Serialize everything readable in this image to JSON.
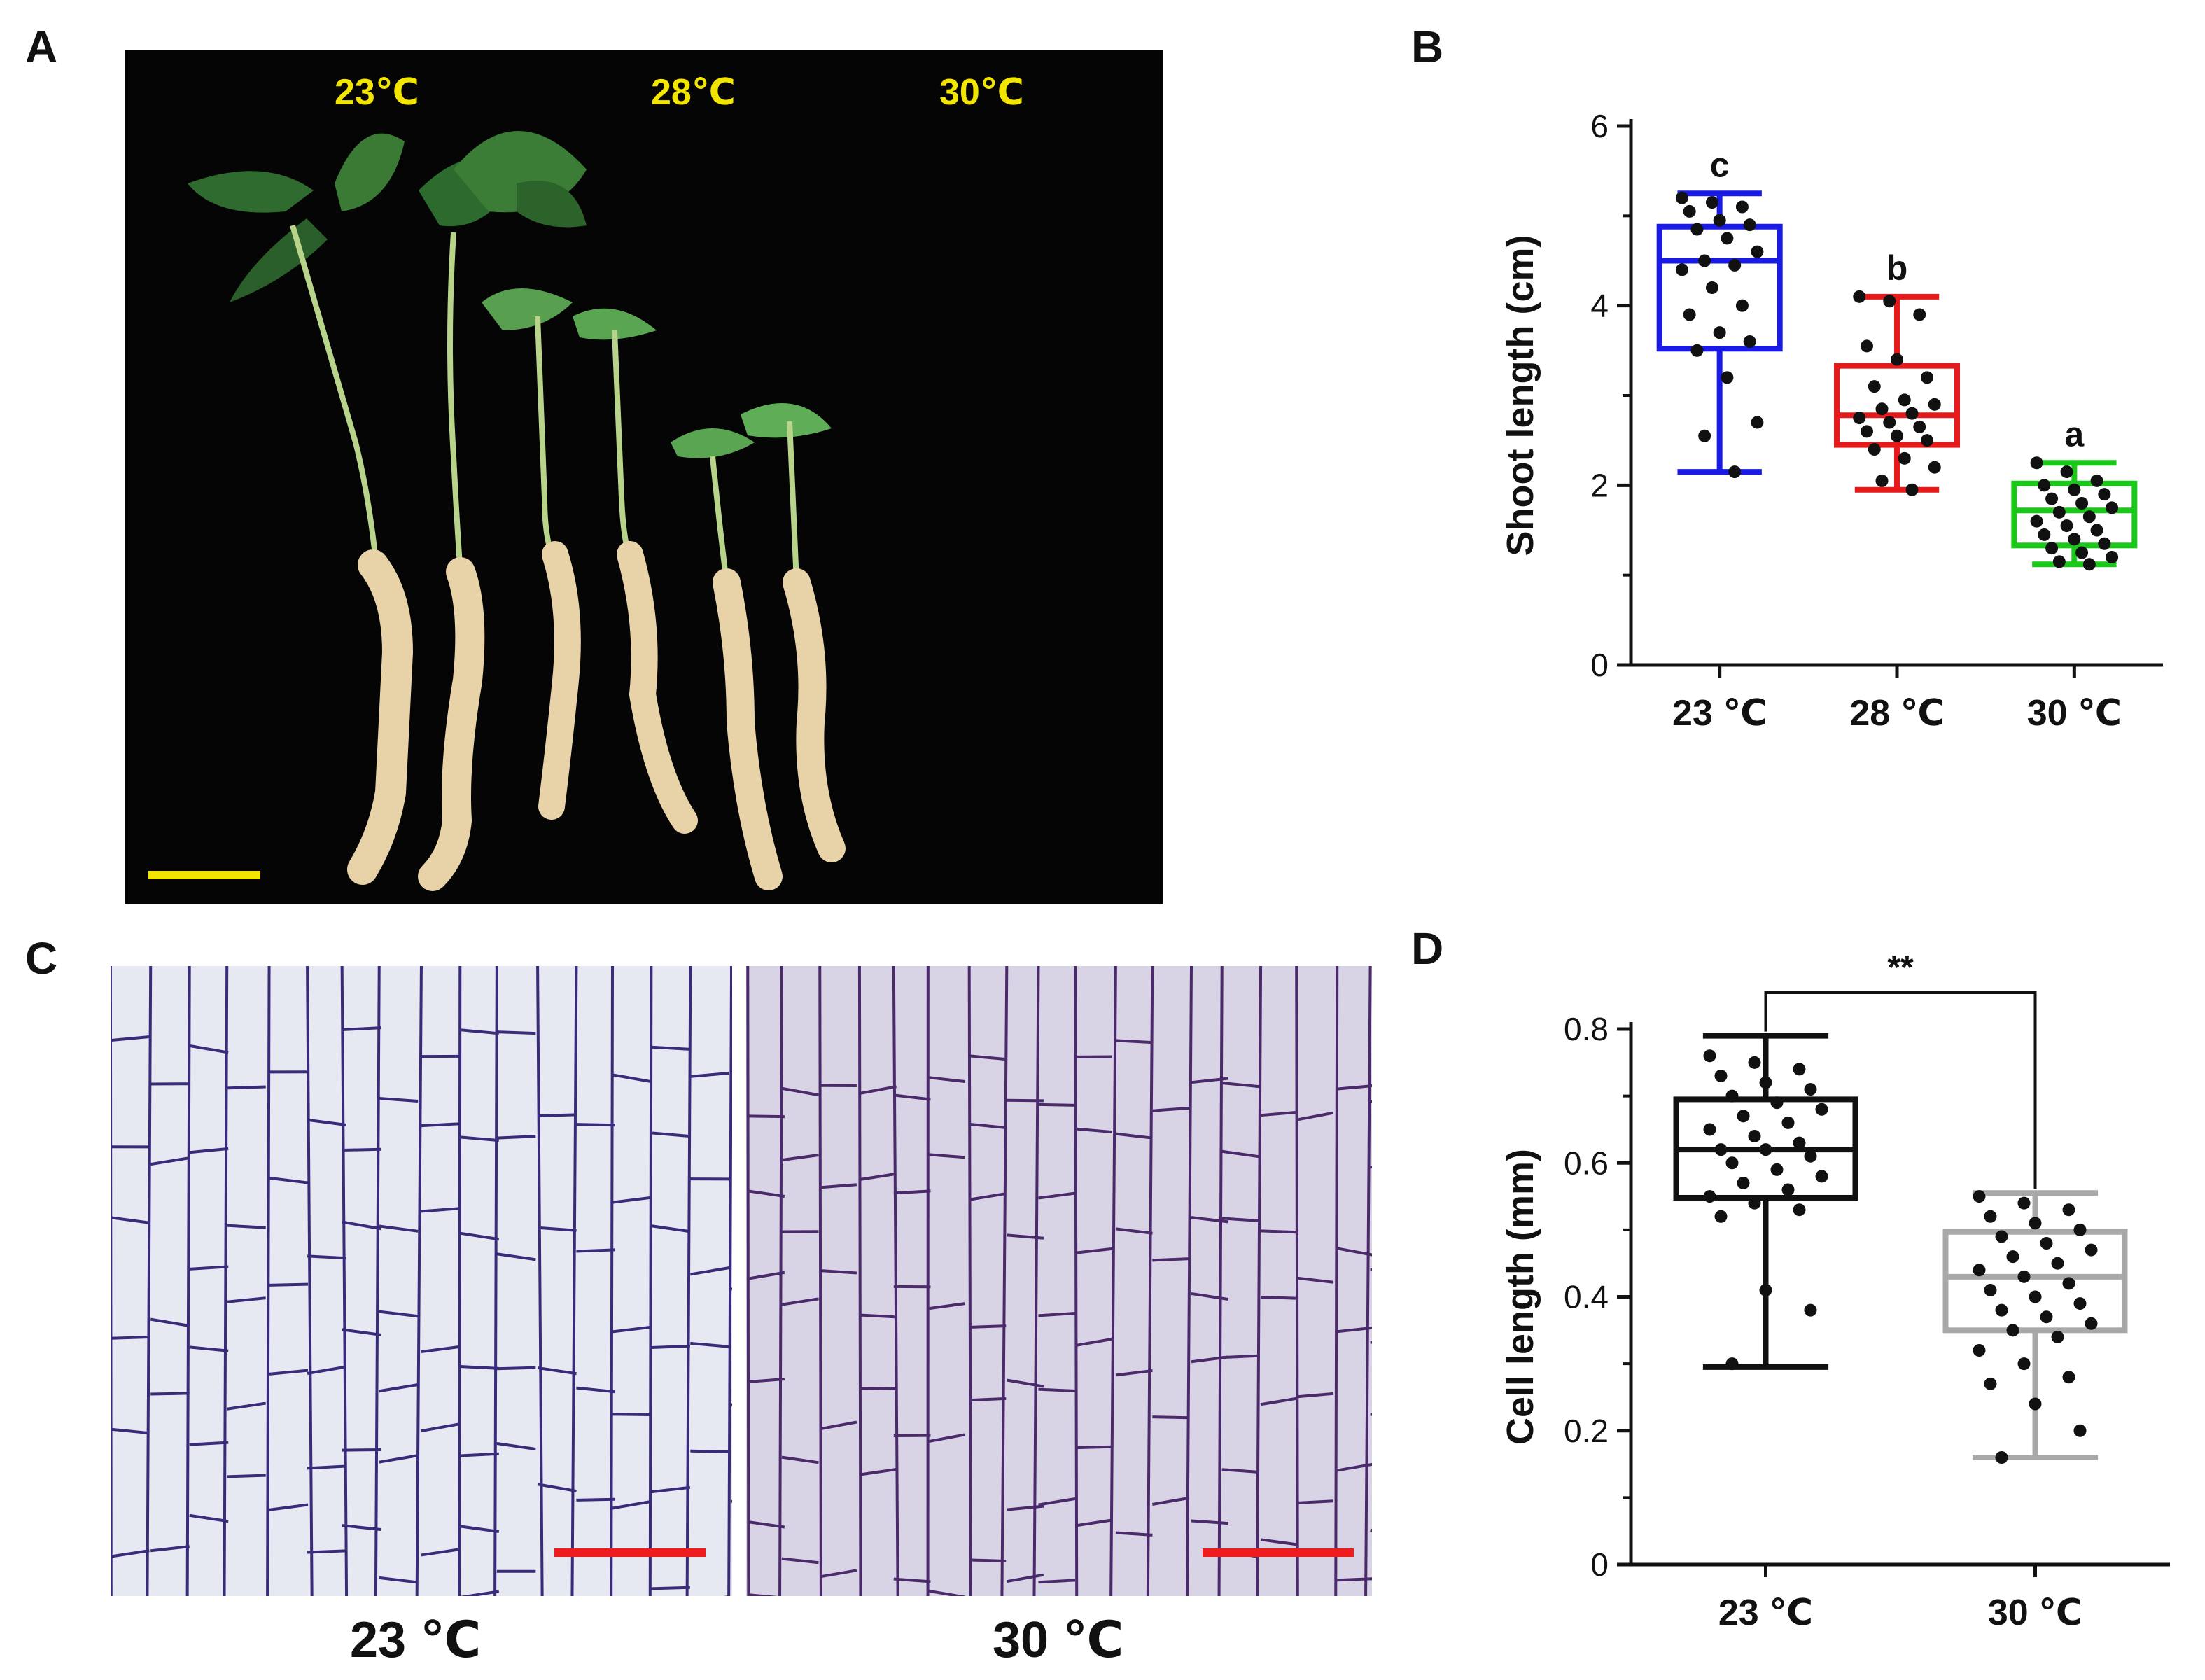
{
  "panels": {
    "a": "A",
    "b": "B",
    "c": "C",
    "d": "D"
  },
  "photo_a": {
    "labels": [
      "23℃",
      "28℃",
      "30℃"
    ]
  },
  "colors": {
    "blue": "#1a1ae6",
    "red": "#e61a1a",
    "green": "#1ac81a",
    "black": "#111111",
    "gray": "#a8a8a8",
    "yellow": "#f2e600",
    "scale_red": "#ee1c1c"
  },
  "micro": {
    "left_label": "23 ℃",
    "right_label": "30 ℃"
  },
  "chart_data": [
    {
      "type": "box",
      "panel": "B",
      "ylabel": "Shoot length (cm)",
      "ylim": [
        0,
        6
      ],
      "yticks": [
        0,
        2,
        4,
        6
      ],
      "categories": [
        "23 ℃",
        "28 ℃",
        "30 ℃"
      ],
      "groups": [
        {
          "name": "23 ℃",
          "color": "#1a1ae6",
          "min": 2.15,
          "q1": 3.52,
          "median": 4.5,
          "q3": 4.88,
          "max": 5.25,
          "letter": "c",
          "points": [
            5.2,
            5.15,
            5.1,
            5.05,
            4.95,
            4.9,
            4.85,
            4.75,
            4.6,
            4.5,
            4.45,
            4.4,
            4.2,
            4.0,
            3.9,
            3.7,
            3.6,
            3.5,
            3.2,
            2.7,
            2.55,
            2.15
          ]
        },
        {
          "name": "28 ℃",
          "color": "#e61a1a",
          "min": 1.95,
          "q1": 2.45,
          "median": 2.78,
          "q3": 3.33,
          "max": 4.1,
          "letter": "b",
          "points": [
            4.1,
            4.05,
            3.9,
            3.55,
            3.4,
            3.2,
            3.1,
            2.95,
            2.9,
            2.85,
            2.8,
            2.75,
            2.7,
            2.65,
            2.6,
            2.55,
            2.5,
            2.4,
            2.3,
            2.2,
            2.05,
            1.95
          ]
        },
        {
          "name": "30 ℃",
          "color": "#1ac81a",
          "min": 1.12,
          "q1": 1.33,
          "median": 1.72,
          "q3": 2.02,
          "max": 2.25,
          "letter": "a",
          "points": [
            2.25,
            2.15,
            2.05,
            2.0,
            1.95,
            1.9,
            1.85,
            1.8,
            1.75,
            1.7,
            1.65,
            1.6,
            1.55,
            1.5,
            1.45,
            1.4,
            1.35,
            1.3,
            1.25,
            1.2,
            1.15,
            1.12
          ]
        }
      ]
    },
    {
      "type": "box",
      "panel": "D",
      "ylabel": "Cell length (mm)",
      "ylim": [
        0,
        0.8
      ],
      "yticks": [
        0,
        0.2,
        0.4,
        0.6,
        0.8
      ],
      "ytick_labels": [
        "0",
        "0.2",
        "0.4",
        "0.6",
        "0.8"
      ],
      "categories": [
        "23 ℃",
        "30 ℃"
      ],
      "significance": "**",
      "groups": [
        {
          "name": "23 ℃",
          "color": "#111111",
          "min": 0.295,
          "q1": 0.548,
          "median": 0.62,
          "q3": 0.695,
          "max": 0.79,
          "points": [
            0.76,
            0.75,
            0.74,
            0.73,
            0.72,
            0.71,
            0.7,
            0.69,
            0.68,
            0.67,
            0.66,
            0.65,
            0.64,
            0.63,
            0.62,
            0.62,
            0.61,
            0.6,
            0.59,
            0.58,
            0.57,
            0.56,
            0.55,
            0.54,
            0.53,
            0.52,
            0.41,
            0.38,
            0.3
          ]
        },
        {
          "name": "30 ℃",
          "color": "#a8a8a8",
          "min": 0.16,
          "q1": 0.35,
          "median": 0.43,
          "q3": 0.497,
          "max": 0.555,
          "points": [
            0.55,
            0.54,
            0.53,
            0.52,
            0.51,
            0.5,
            0.49,
            0.48,
            0.47,
            0.46,
            0.45,
            0.44,
            0.43,
            0.42,
            0.41,
            0.4,
            0.39,
            0.38,
            0.37,
            0.36,
            0.35,
            0.34,
            0.32,
            0.3,
            0.28,
            0.27,
            0.24,
            0.2,
            0.16
          ]
        }
      ]
    }
  ]
}
